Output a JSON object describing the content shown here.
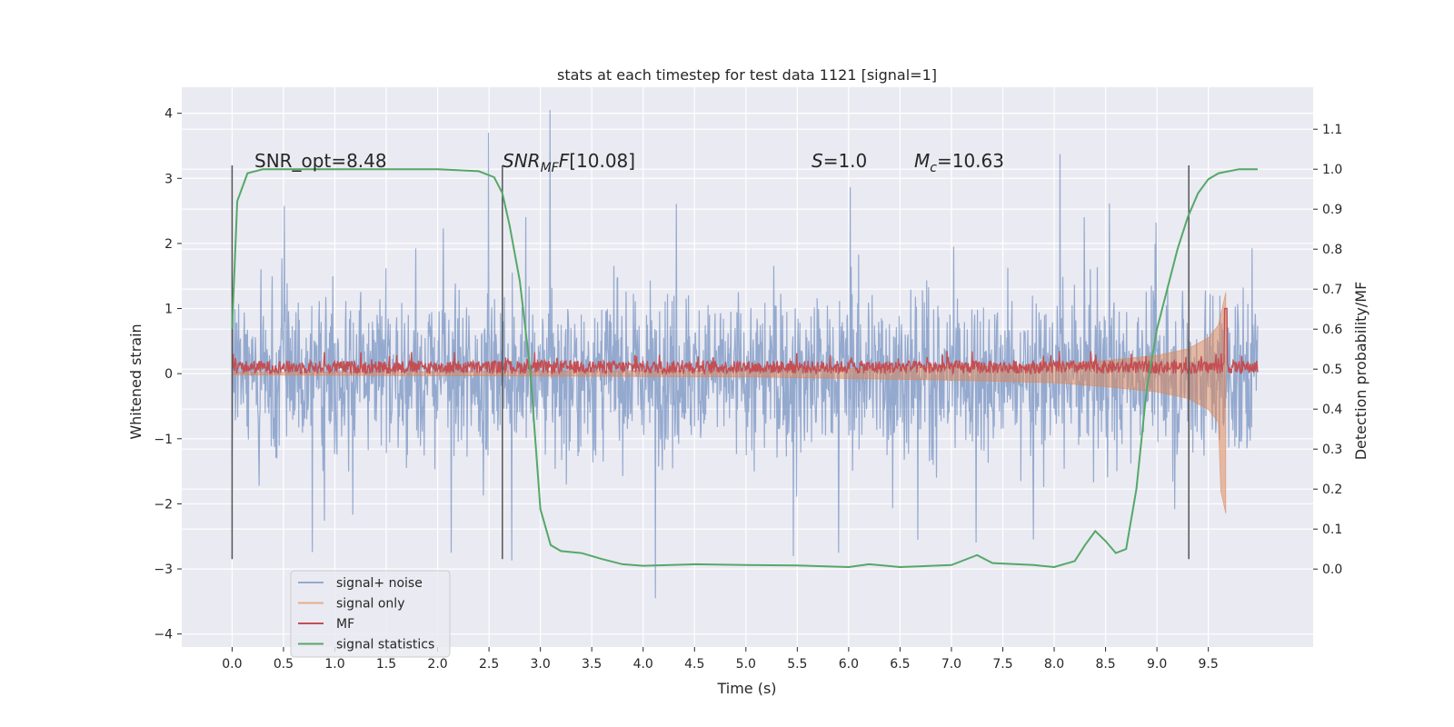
{
  "chart_data": {
    "type": "line",
    "title": "stats at each timestep for test data 1121 [signal=1]",
    "xlabel": "Time (s)",
    "ylabel_left": "Whitened strain",
    "ylabel_right": "Detection probability/MF",
    "xlim": [
      -0.49,
      10.52
    ],
    "ylim_left": [
      -4.2,
      4.4
    ],
    "ylim_right": [
      -0.195,
      1.205
    ],
    "x_ticks": [
      "0.0",
      "0.5",
      "1.0",
      "1.5",
      "2.0",
      "2.5",
      "3.0",
      "3.5",
      "4.0",
      "4.5",
      "5.0",
      "5.5",
      "6.0",
      "6.5",
      "7.0",
      "7.5",
      "8.0",
      "8.5",
      "9.0",
      "9.5"
    ],
    "y_ticks_left": [
      "4",
      "3",
      "2",
      "1",
      "0",
      "−1",
      "−2",
      "−3",
      "−4"
    ],
    "y_ticks_right": [
      "1.1",
      "1.0",
      "0.9",
      "0.8",
      "0.7",
      "0.6",
      "0.5",
      "0.4",
      "0.3",
      "0.2",
      "0.1",
      "0.0"
    ],
    "grid": true,
    "legend_position": "lower-left",
    "annotations": {
      "snr_opt": "SNR_opt=8.48",
      "snr_mf": "[10.08]",
      "s": "=1.0",
      "mc": "=10.63"
    },
    "vertical_markers_x": [
      0.0,
      2.63,
      9.31
    ],
    "series": [
      {
        "name": "signal+ noise",
        "color": "#4c72b0",
        "description": "whitened noisy strain, approx. ±1.4 sigma band with spikes to ±3.5",
        "x_range": [
          0.0,
          9.98
        ],
        "typical_band": [
          -1.4,
          1.4
        ],
        "max": 4.05,
        "min": -3.45
      },
      {
        "name": "signal only",
        "color": "#dd8452",
        "description": "chirp signal growing in amplitude until merger",
        "x_range": [
          0.0,
          9.67
        ],
        "envelope": {
          "x": [
            0.0,
            5.0,
            7.0,
            8.0,
            8.5,
            9.0,
            9.3,
            9.5,
            9.6,
            9.67
          ],
          "amp": [
            0.02,
            0.05,
            0.1,
            0.14,
            0.2,
            0.28,
            0.38,
            0.55,
            0.75,
            1.25
          ]
        }
      },
      {
        "name": "MF",
        "color": "#c44e52",
        "description": "matched filter output fluctuating around 0.1",
        "x_range": [
          0.0,
          9.98
        ],
        "baseline": 0.1,
        "peak": {
          "x": 9.67,
          "y": 1.0
        }
      },
      {
        "name": "signal statistics",
        "color": "#55a868",
        "axis": "right",
        "x": [
          0.0,
          0.05,
          0.15,
          0.3,
          1.0,
          2.0,
          2.4,
          2.55,
          2.63,
          2.7,
          2.8,
          2.9,
          3.0,
          3.1,
          3.2,
          3.4,
          3.6,
          3.8,
          4.0,
          4.5,
          5.0,
          5.5,
          6.0,
          6.2,
          6.5,
          7.0,
          7.2,
          7.25,
          7.4,
          7.8,
          8.0,
          8.2,
          8.3,
          8.4,
          8.5,
          8.6,
          8.7,
          8.8,
          8.9,
          9.0,
          9.1,
          9.2,
          9.3,
          9.4,
          9.5,
          9.6,
          9.8,
          9.98
        ],
        "y": [
          0.6,
          0.92,
          0.99,
          1.0,
          1.0,
          1.0,
          0.995,
          0.98,
          0.94,
          0.86,
          0.72,
          0.5,
          0.15,
          0.06,
          0.045,
          0.04,
          0.025,
          0.012,
          0.008,
          0.012,
          0.01,
          0.009,
          0.005,
          0.012,
          0.005,
          0.01,
          0.03,
          0.035,
          0.015,
          0.01,
          0.005,
          0.02,
          0.06,
          0.095,
          0.07,
          0.04,
          0.05,
          0.2,
          0.45,
          0.6,
          0.7,
          0.8,
          0.88,
          0.94,
          0.975,
          0.99,
          1.0,
          1.0
        ]
      }
    ]
  }
}
